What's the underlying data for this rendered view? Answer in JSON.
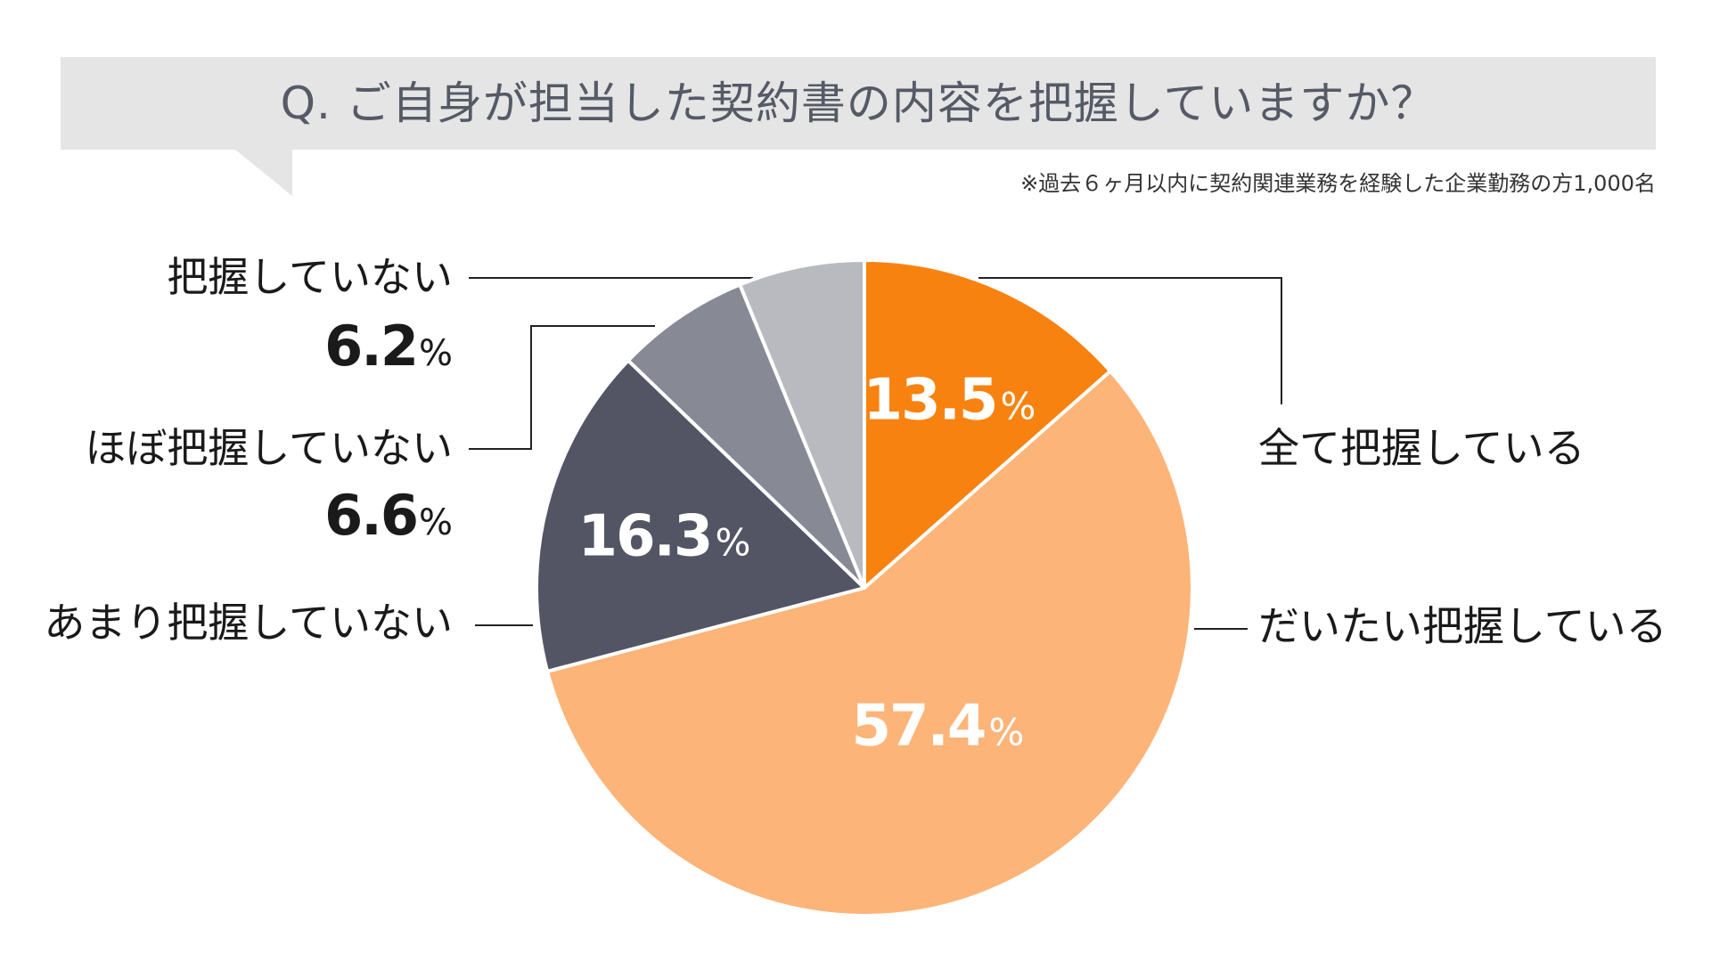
{
  "title": "Q. ご自身が担当した契約書の内容を把握していますか？",
  "note": "※過去６ヶ月以内に契約関連業務を経験した企業勤務の方1,000名",
  "percent_sign": "%",
  "colors": {
    "title_background": "#e5e5e6",
    "title_text": "#555a66",
    "line": "#222222",
    "separator": "#ffffff"
  },
  "chart_data": {
    "type": "pie",
    "title": "Q. ご自身が担当した契約書の内容を把握していますか？",
    "start_angle_deg": 0,
    "direction": "clockwise",
    "slices": [
      {
        "label": "全て把握している",
        "value": 13.5,
        "display": "13.5",
        "color": "#f8820f",
        "value_position": "inside"
      },
      {
        "label": "だいたい把握している",
        "value": 57.4,
        "display": "57.4",
        "color": "#fdb478",
        "value_position": "inside"
      },
      {
        "label": "あまり把握していない",
        "value": 16.3,
        "display": "16.3",
        "color": "#535564",
        "value_position": "inside"
      },
      {
        "label": "ほぼ把握していない",
        "value": 6.6,
        "display": "6.6",
        "color": "#878a95",
        "value_position": "outside"
      },
      {
        "label": "把握していない",
        "value": 6.2,
        "display": "6.2",
        "color": "#b9bac0",
        "value_position": "outside"
      }
    ]
  }
}
